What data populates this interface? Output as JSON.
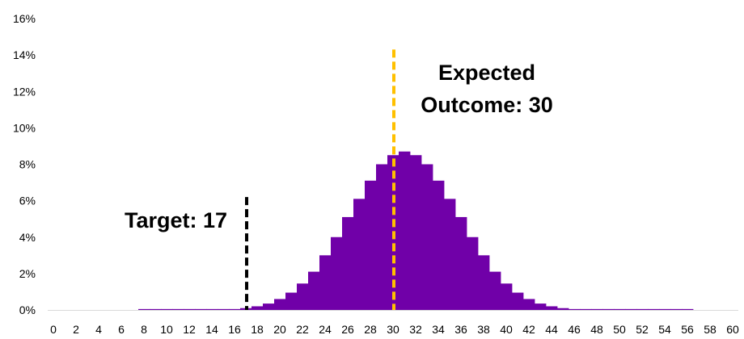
{
  "chart_data": {
    "type": "bar",
    "title": "",
    "xlabel": "",
    "ylabel": "",
    "xlim": [
      0,
      60
    ],
    "ylim": [
      0,
      16
    ],
    "x_ticks": [
      0,
      2,
      4,
      6,
      8,
      10,
      12,
      14,
      16,
      18,
      20,
      22,
      24,
      26,
      28,
      30,
      32,
      34,
      36,
      38,
      40,
      42,
      44,
      46,
      48,
      50,
      52,
      54,
      56,
      58,
      60
    ],
    "x_tick_labels": [
      "0",
      "2",
      "4",
      "6",
      "8",
      "10",
      "12",
      "14",
      "16",
      "18",
      "20",
      "22",
      "24",
      "26",
      "28",
      "30",
      "32",
      "34",
      "36",
      "38",
      "40",
      "42",
      "44",
      "46",
      "48",
      "50",
      "52",
      "54",
      "56",
      "58",
      "60"
    ],
    "y_ticks": [
      0,
      2,
      4,
      6,
      8,
      10,
      12,
      14,
      16
    ],
    "y_tick_labels": [
      "0%",
      "2%",
      "4%",
      "6%",
      "8%",
      "10%",
      "12%",
      "14%",
      "16%"
    ],
    "grid": false,
    "bar_color": "#7000A8",
    "series": [
      {
        "x": [
          8,
          9,
          10,
          11,
          12,
          13,
          14,
          15,
          16,
          17,
          18,
          19,
          20,
          21,
          22,
          23,
          24,
          25,
          26,
          27,
          28,
          29,
          30,
          31,
          32,
          33,
          34,
          35,
          36,
          37,
          38,
          39,
          40,
          41,
          42,
          43,
          44,
          45,
          46,
          47,
          48,
          49,
          50,
          51,
          52,
          53,
          54,
          55,
          56
        ],
        "values": [
          0.05,
          0.05,
          0.05,
          0.05,
          0.05,
          0.05,
          0.05,
          0.05,
          0.05,
          0.1,
          0.2,
          0.35,
          0.6,
          0.95,
          1.45,
          2.1,
          3.0,
          4.0,
          5.1,
          6.1,
          7.1,
          8.0,
          8.5,
          8.7,
          8.5,
          8.0,
          7.1,
          6.1,
          5.1,
          4.0,
          3.0,
          2.1,
          1.45,
          0.95,
          0.6,
          0.35,
          0.2,
          0.1,
          0.05,
          0.05,
          0.05,
          0.05,
          0.05,
          0.05,
          0.05,
          0.05,
          0.05,
          0.05,
          0.05
        ]
      }
    ],
    "annotations": [
      {
        "lines": [
          "Target: 17"
        ],
        "x": 17,
        "line_top": 6.2,
        "color": "#000000"
      },
      {
        "lines": [
          "Expected",
          "Outcome: 30"
        ],
        "x": 30,
        "line_top": 14.3,
        "color": "#FFC000"
      }
    ]
  }
}
